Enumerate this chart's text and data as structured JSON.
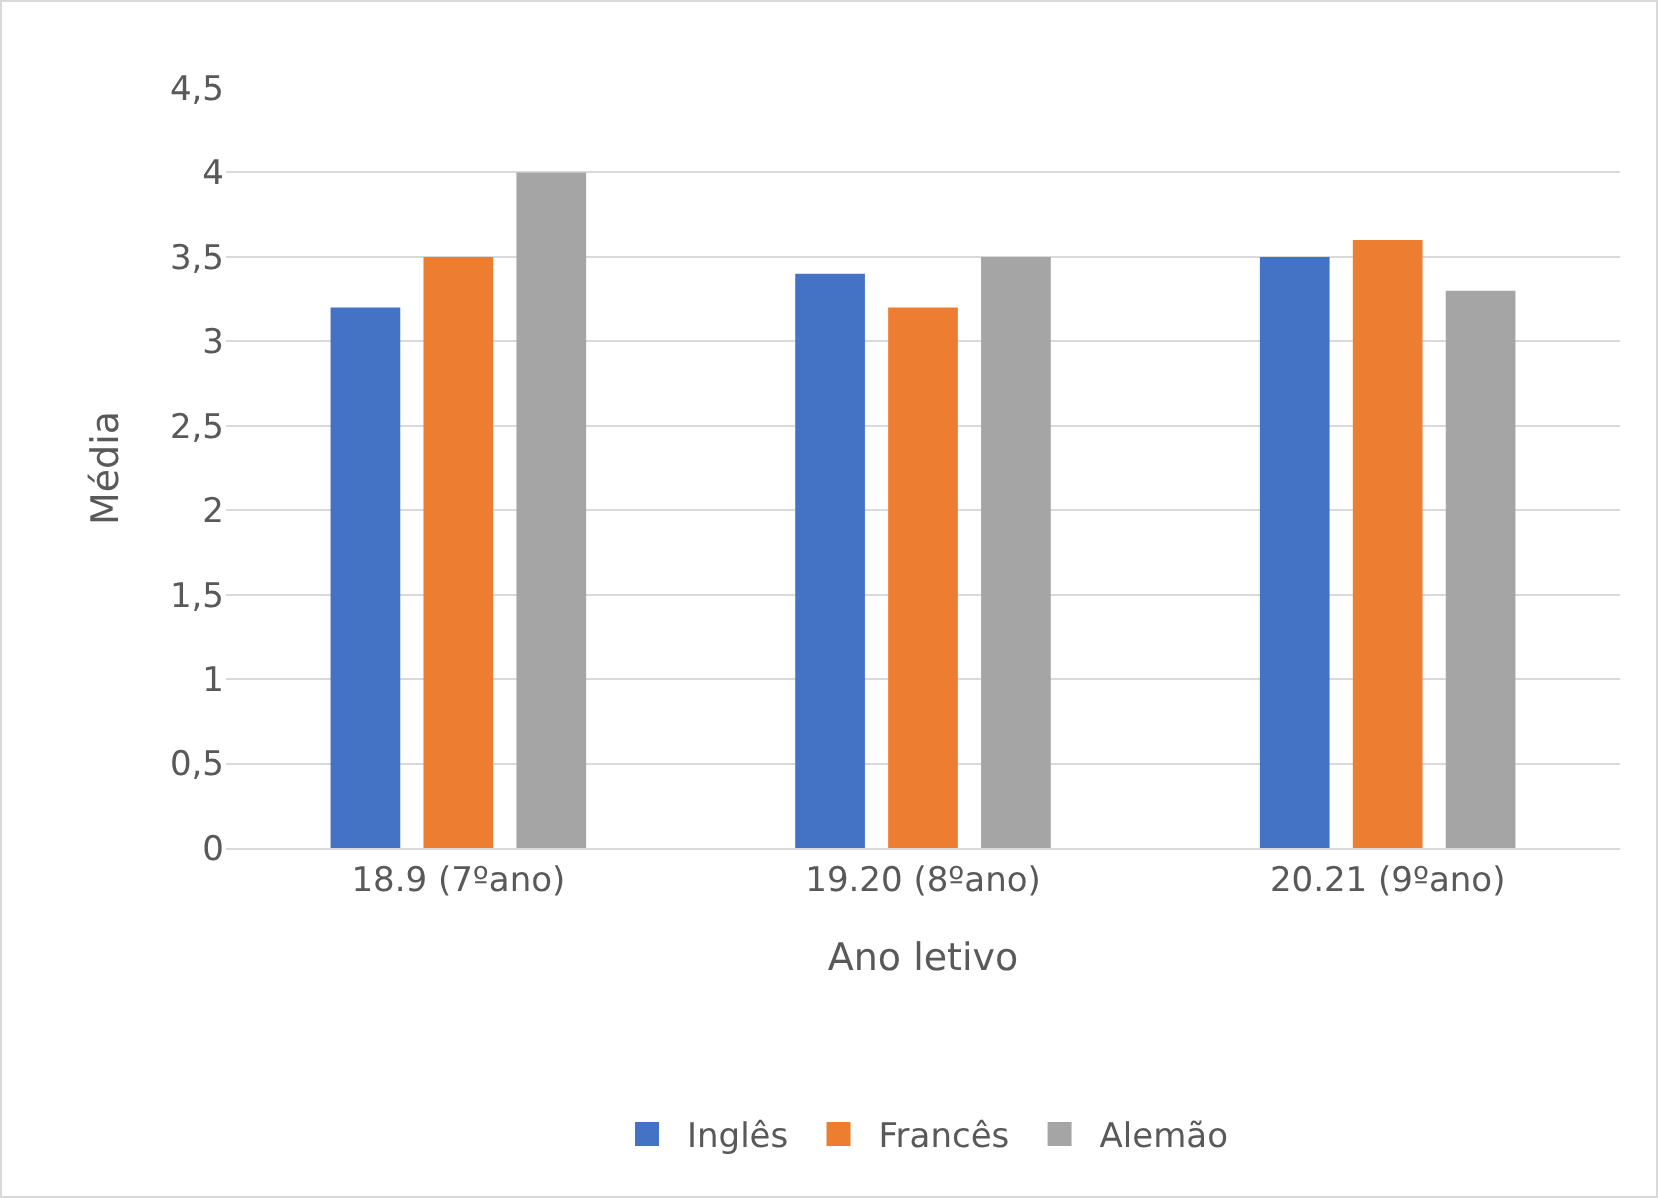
{
  "chart_data": {
    "type": "bar",
    "xlabel": "Ano letivo",
    "ylabel": "Média",
    "categories": [
      "18.9 (7ºano)",
      "19.20 (8ºano)",
      "20.21 (9ºano)"
    ],
    "series": [
      {
        "name": "Inglês",
        "color": "#4472c4",
        "values": [
          3.2,
          3.4,
          3.5
        ]
      },
      {
        "name": "Francês",
        "color": "#ed7d31",
        "values": [
          3.5,
          3.2,
          3.6
        ]
      },
      {
        "name": "Alemão",
        "color": "#a5a5a5",
        "values": [
          4,
          3.5,
          3.3
        ]
      }
    ],
    "ylim": [
      0,
      4.5
    ],
    "yticks": [
      0,
      {
        "value": 0.5,
        "label": "0,5"
      },
      1,
      {
        "value": 1.5,
        "label": "1,5"
      },
      2,
      {
        "value": 2.5,
        "label": "2,5"
      },
      3,
      {
        "value": 3.5,
        "label": "3,5"
      },
      4,
      {
        "value": 4.5,
        "label": "4,5"
      }
    ],
    "grid": "y",
    "legend": "bottom"
  }
}
